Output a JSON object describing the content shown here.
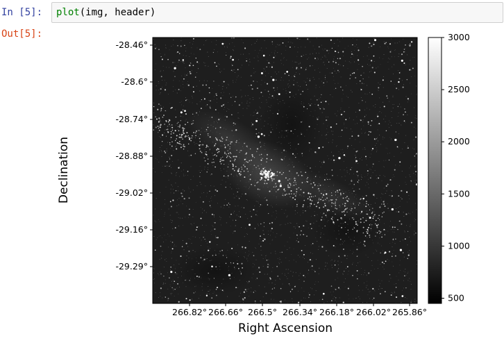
{
  "notebook": {
    "input_prompt": "In [5]:",
    "output_prompt": "Out[5]:",
    "code": {
      "function": "plot",
      "args": "(img, header)"
    }
  },
  "figure": {
    "image_description_colormap": "gray",
    "xlabel": "Right Ascension",
    "ylabel": "Declination",
    "x_ticks": [
      "266.82°",
      "266.66°",
      "266.5°",
      "266.34°",
      "266.18°",
      "266.02°",
      "265.86°"
    ],
    "y_ticks": [
      "-28.46°",
      "-28.6°",
      "-28.74°",
      "-28.88°",
      "-29.02°",
      "-29.16°",
      "-29.29°"
    ],
    "colorbar": {
      "ticks": [
        "3000",
        "2500",
        "2000",
        "1500",
        "1000",
        "500"
      ],
      "tick_values": [
        3000,
        2500,
        2000,
        1500,
        1000,
        500
      ],
      "range": [
        450,
        3000
      ]
    },
    "colors": {
      "image_background": "#1e1e1e",
      "star": "#ffffff",
      "axis": "#000000"
    }
  }
}
